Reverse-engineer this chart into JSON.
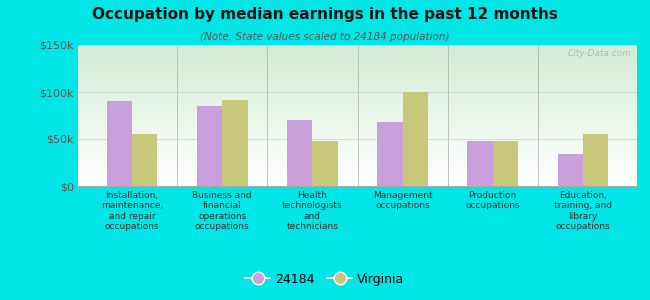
{
  "title": "Occupation by median earnings in the past 12 months",
  "subtitle": "(Note: State values scaled to 24184 population)",
  "categories": [
    "Installation,\nmaintenance,\nand repair\noccupations",
    "Business and\nfinancial\noperations\noccupations",
    "Health\ntechnologists\nand\ntechnicians",
    "Management\noccupations",
    "Production\noccupations",
    "Education,\ntraining, and\nlibrary\noccupations"
  ],
  "values_24184": [
    90000,
    85000,
    70000,
    68000,
    48000,
    34000
  ],
  "values_virginia": [
    55000,
    92000,
    48000,
    100000,
    48000,
    55000
  ],
  "color_24184": "#c9a0dc",
  "color_virginia": "#c8c87a",
  "ylim": [
    0,
    150000
  ],
  "yticks": [
    0,
    50000,
    100000,
    150000
  ],
  "ytick_labels": [
    "$0",
    "$50k",
    "$100k",
    "$150k"
  ],
  "background_color": "#00e5e5",
  "legend_labels": [
    "24184",
    "Virginia"
  ],
  "watermark": "City-Data.com",
  "bar_width": 0.28
}
